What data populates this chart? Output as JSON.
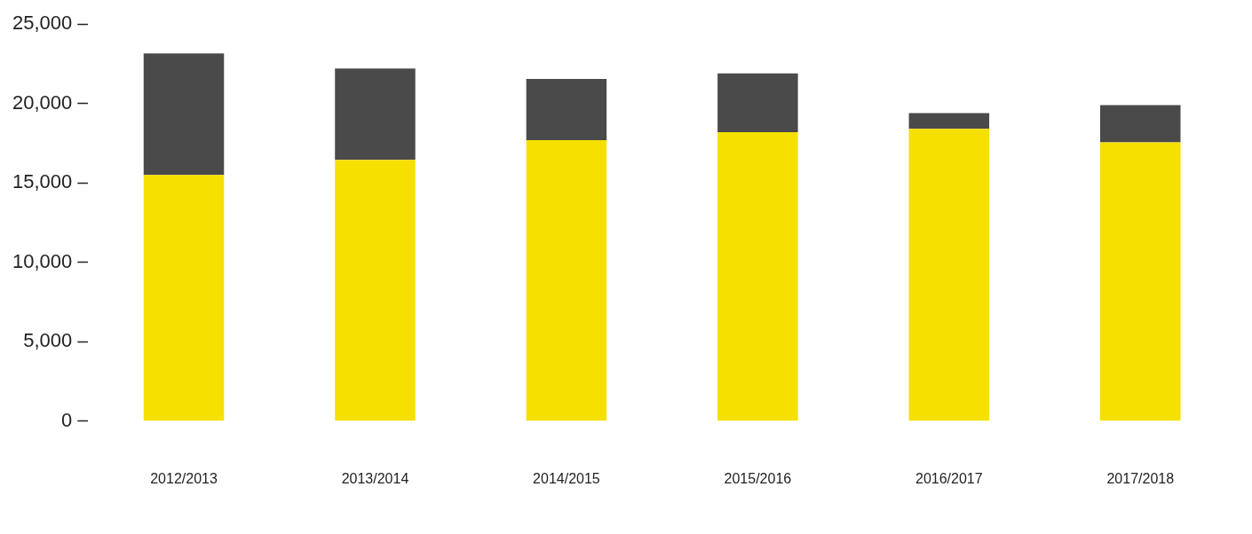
{
  "chart_data": {
    "type": "bar",
    "stacked": true,
    "categories": [
      "2012/2013",
      "2013/2014",
      "2014/2015",
      "2015/2016",
      "2016/2017",
      "2017/2018"
    ],
    "series": [
      {
        "color": "#f6e000",
        "values": [
          15500,
          16450,
          17700,
          18200,
          18400,
          17550
        ]
      },
      {
        "color": "#4a4a4a",
        "values": [
          7650,
          5750,
          3850,
          3700,
          1000,
          2350
        ]
      }
    ],
    "ylim": [
      0,
      25000
    ],
    "yticks": [
      {
        "value": 0,
        "label": "0"
      },
      {
        "value": 5000,
        "label": "5,000"
      },
      {
        "value": 10000,
        "label": "10,000"
      },
      {
        "value": 15000,
        "label": "15,000"
      },
      {
        "value": 20000,
        "label": "20,000"
      },
      {
        "value": 25000,
        "label": "25,000"
      }
    ],
    "grid": false,
    "legend": false
  }
}
